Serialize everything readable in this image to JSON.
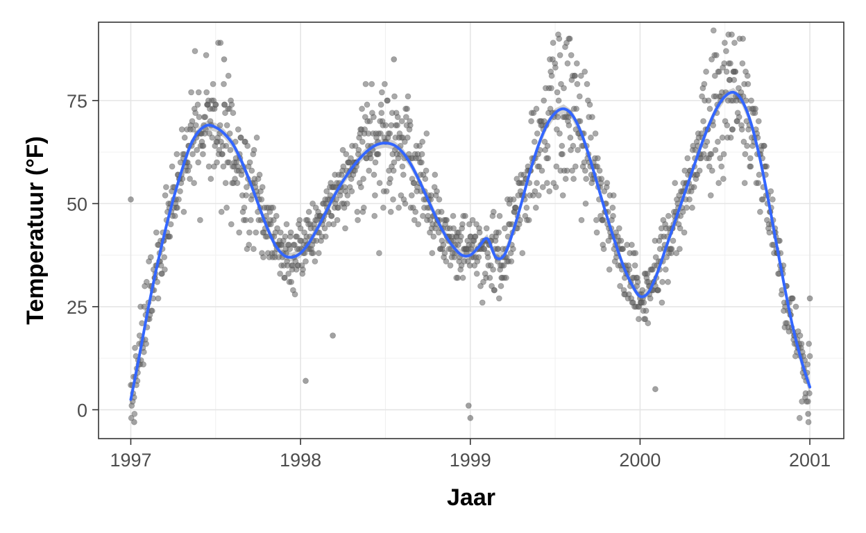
{
  "chart_data": {
    "type": "scatter",
    "title": "",
    "xlabel": "Jaar",
    "ylabel": "Temperatuur (°F)",
    "xlim": [
      1996.81,
      2001.2
    ],
    "ylim": [
      -7,
      94
    ],
    "x_ticks": [
      {
        "value": 1997,
        "label": "1997"
      },
      {
        "value": 1998,
        "label": "1998"
      },
      {
        "value": 1999,
        "label": "1999"
      },
      {
        "value": 2000,
        "label": "2000"
      },
      {
        "value": 2001,
        "label": "2001"
      }
    ],
    "y_ticks": [
      {
        "value": 0,
        "label": "0"
      },
      {
        "value": 25,
        "label": "25"
      },
      {
        "value": 50,
        "label": "50"
      },
      {
        "value": 75,
        "label": "75"
      }
    ],
    "grid": true,
    "colors": {
      "points": "#636363",
      "smooth_line": "#3366ff",
      "confidence_band": "#bfbfbf",
      "grid": "#e5e5e5",
      "panel_border": "#333333"
    },
    "points": {
      "description": "daily temperature observations, 1997–2000 (approx. one point per day)",
      "x_start": 1997.0,
      "x_end": 2001.0,
      "count": 1461,
      "notable": [
        {
          "x": 1997.0,
          "y": 51
        },
        {
          "x": 1997.02,
          "y": -3
        },
        {
          "x": 1997.55,
          "y": 85
        },
        {
          "x": 1998.03,
          "y": 7
        },
        {
          "x": 1998.19,
          "y": 18
        },
        {
          "x": 1998.55,
          "y": 85
        },
        {
          "x": 1998.99,
          "y": 1
        },
        {
          "x": 1999.0,
          "y": -2
        },
        {
          "x": 1999.58,
          "y": 90
        },
        {
          "x": 2000.09,
          "y": 5
        },
        {
          "x": 2000.55,
          "y": 82
        },
        {
          "x": 2000.99,
          "y": -1
        },
        {
          "x": 2001.0,
          "y": 27
        }
      ]
    },
    "series": [
      {
        "type": "smooth",
        "x": [
          1997.0,
          1997.05,
          1997.1,
          1997.15,
          1997.2,
          1997.25,
          1997.3,
          1997.35,
          1997.4,
          1997.45,
          1997.5,
          1997.55,
          1997.6,
          1997.65,
          1997.7,
          1997.75,
          1997.8,
          1997.85,
          1997.9,
          1997.95,
          1998.0,
          1998.05,
          1998.1,
          1998.15,
          1998.2,
          1998.25,
          1998.3,
          1998.35,
          1998.4,
          1998.45,
          1998.5,
          1998.55,
          1998.6,
          1998.65,
          1998.7,
          1998.75,
          1998.8,
          1998.85,
          1998.9,
          1998.95,
          1999.0,
          1999.05,
          1999.1,
          1999.15,
          1999.2,
          1999.25,
          1999.3,
          1999.35,
          1999.4,
          1999.45,
          1999.5,
          1999.55,
          1999.6,
          1999.65,
          1999.7,
          1999.75,
          1999.8,
          1999.85,
          1999.9,
          1999.95,
          2000.0,
          2000.05,
          2000.1,
          2000.15,
          2000.2,
          2000.25,
          2000.3,
          2000.35,
          2000.4,
          2000.45,
          2000.5,
          2000.55,
          2000.6,
          2000.65,
          2000.7,
          2000.75,
          2000.8,
          2000.85,
          2000.9,
          2000.95,
          2001.0
        ],
        "y": [
          2.5,
          13,
          24,
          34,
          43,
          51,
          58,
          64,
          67.5,
          69,
          68.5,
          67,
          64.5,
          60.5,
          55.5,
          50,
          44.5,
          40,
          37.5,
          37,
          38,
          40.5,
          44,
          48,
          52,
          55.5,
          58.5,
          61,
          63,
          64.3,
          64.7,
          64.2,
          62.5,
          59.5,
          55.5,
          51,
          46.5,
          42.5,
          39.5,
          37.5,
          37.5,
          39.5,
          41.5,
          37,
          37.5,
          43,
          50,
          57.5,
          64,
          69,
          72,
          73,
          71.5,
          67.5,
          61.5,
          54.5,
          47.5,
          41,
          35,
          30.5,
          27.5,
          28.5,
          33,
          39,
          45,
          51,
          57,
          63,
          68.5,
          73,
          76,
          77,
          75,
          70,
          62,
          52,
          41,
          30,
          20,
          12,
          5.5
        ]
      }
    ]
  }
}
